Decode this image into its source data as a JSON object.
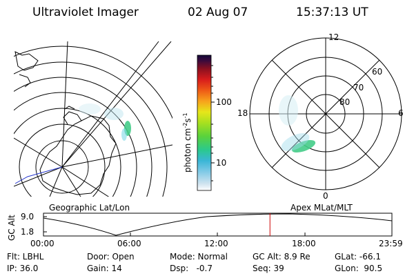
{
  "header": {
    "title": "Ultraviolet Imager",
    "date": "02 Aug 07",
    "time": "15:37:13 UT"
  },
  "colorbar": {
    "unit_label": "photon cm",
    "unit_exp1": "-2",
    "unit_s": "s",
    "unit_exp2": "-1",
    "tick_100": "100",
    "tick_10": "10"
  },
  "polar_plot": {
    "lat_labels": [
      "60",
      "70",
      "80"
    ],
    "mlt_labels": {
      "top": "12",
      "left": "18",
      "right": "6",
      "bottom": "0"
    }
  },
  "panel_labels": {
    "left": "Geographic Lat/Lon",
    "right": "Apex MLat/MLT"
  },
  "altitude_plot": {
    "ylabel": "GC Alt",
    "y_ticks": [
      "9.0",
      "1.8"
    ],
    "x_ticks": [
      "00:00",
      "06:00",
      "12:00",
      "18:00",
      "23:59"
    ],
    "current_time_fraction": 0.65
  },
  "info": {
    "row1": {
      "filter": "Flt: LBHL",
      "door": "Door: Open",
      "mode": "Mode: Normal",
      "gc_alt": "GC Alt: 8.9 Re",
      "glat": "GLat: -66.1"
    },
    "row2": {
      "ip": "IP: 36.0",
      "gain": "Gain: 14",
      "dsp": "Dsp:   -0.7",
      "seq": "Seq: 39",
      "glon": "GLon:  90.5"
    }
  },
  "colors": {
    "current_time_marker": "#cc0000",
    "aurora": "#44cc88"
  }
}
